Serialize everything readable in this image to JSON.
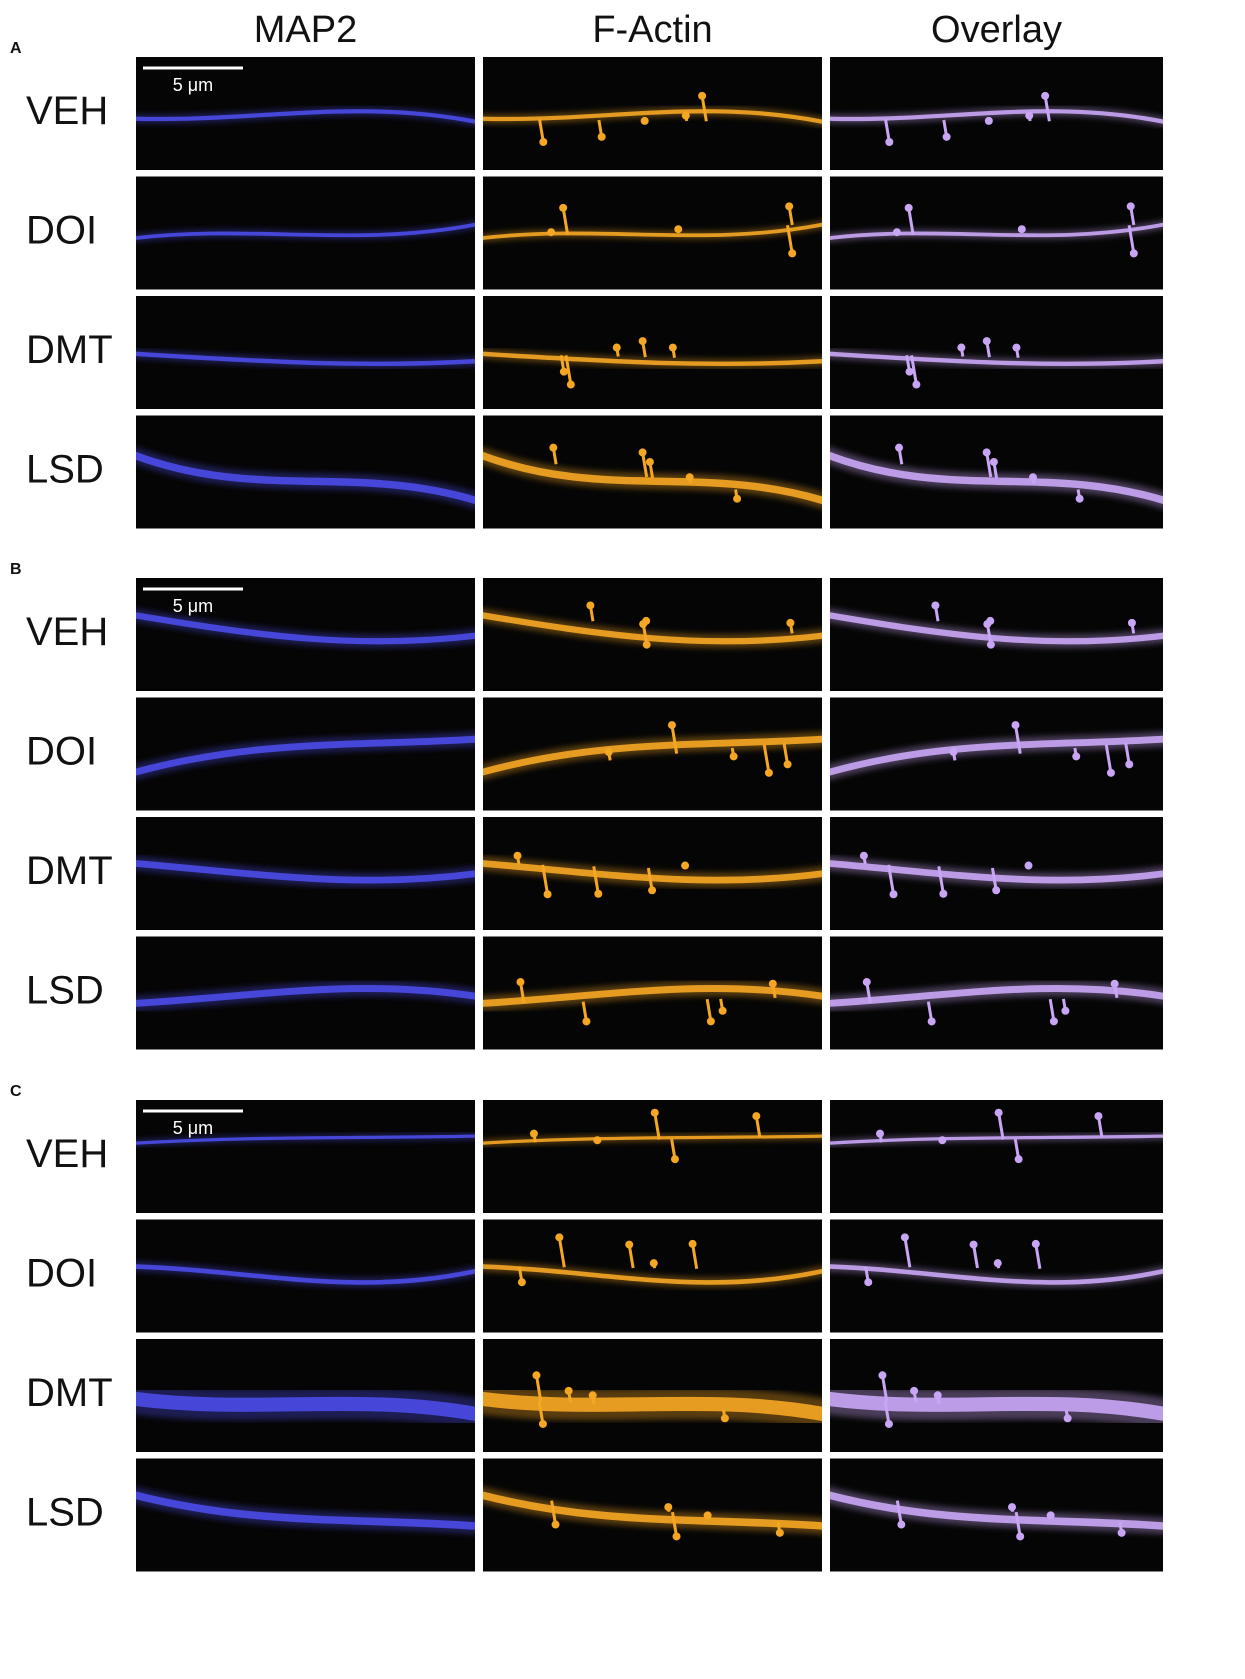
{
  "columns": [
    "MAP2",
    "F-Actin",
    "Overlay"
  ],
  "panels": [
    {
      "label": "A",
      "scale_bar": "5 μm",
      "rows": [
        "VEH",
        "DOI",
        "DMT",
        "LSD"
      ]
    },
    {
      "label": "B",
      "scale_bar": "5 μm",
      "rows": [
        "VEH",
        "DOI",
        "DMT",
        "LSD"
      ]
    },
    {
      "label": "C",
      "scale_bar": "5 μm",
      "rows": [
        "VEH",
        "DOI",
        "DMT",
        "LSD"
      ]
    }
  ]
}
